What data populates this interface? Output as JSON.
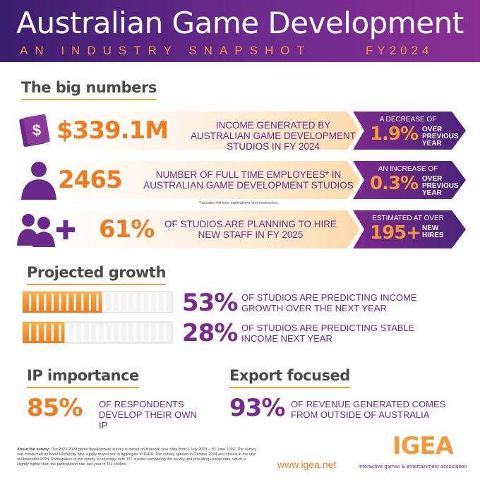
{
  "header": {
    "title": "Australian Game Development",
    "subtitle": "AN INDUSTRY SNAPSHOT",
    "year": "FY2024"
  },
  "big_numbers": {
    "heading": "The big numbers",
    "items": [
      {
        "figure": "$339.1M",
        "description": "INCOME GENERATED BY AUSTRALIAN GAME DEVELOPMENT STUDIOS IN FY 2024",
        "note_intro": "A DECREASE OF",
        "note_figure": "1.9%",
        "note_tail": "OVER PREVIOUS YEAR"
      },
      {
        "figure": "2465",
        "description": "NUMBER OF FULL TIME EMPLOYEES* IN AUSTRALIAN GAME DEVELOPMENT STUDIOS",
        "note_intro": "AN INCREASE OF",
        "note_figure": "0.3%",
        "note_tail": "OVER PREVIOUS YEAR"
      },
      {
        "figure": "61%",
        "description": "OF STUDIOS ARE PLANNING TO HIRE NEW STAFF IN FY 2025",
        "note_intro": "ESTIMATED AT OVER",
        "note_figure": "195+",
        "note_tail": "NEW HIRES"
      }
    ],
    "footnote": "*Includes full time equivalents and contractors."
  },
  "projected_growth": {
    "heading": "Projected growth",
    "items": [
      {
        "value": 53,
        "value_label": "53%",
        "text": "OF STUDIOS ARE PREDICTING INCOME GROWTH OVER THE NEXT YEAR"
      },
      {
        "value": 28,
        "value_label": "28%",
        "text": "OF STUDIOS ARE PREDICTING STABLE INCOME NEXT YEAR"
      }
    ]
  },
  "ip_importance": {
    "heading": "IP importance",
    "figure": "85%",
    "text": "OF RESPONDENTS DEVELOP THEIR OWN IP"
  },
  "export_focused": {
    "heading": "Export focused",
    "figure": "93%",
    "text": "OF REVENUE GENERATED COMES FROM OUTSIDE OF AUSTRALIA"
  },
  "footer": {
    "about_label": "About the survey:",
    "about_text": "Our 2023-2024 game development survey is based on financial year data from 1 July 2023 – 30 June 2024. The survey was conducted by Bond University who supply responses in aggregate to IGEA. The survey opened in October 2024 and closed at the end of November 2024. Participation in the survey is voluntary, with 137 studios completing the survey and providing usable data, which is slightly higher than the participation rate last year of 111 studios.",
    "url": "www.igea.net",
    "logo": "IGEA",
    "logo_tagline": "interactive games & entertainment association"
  }
}
